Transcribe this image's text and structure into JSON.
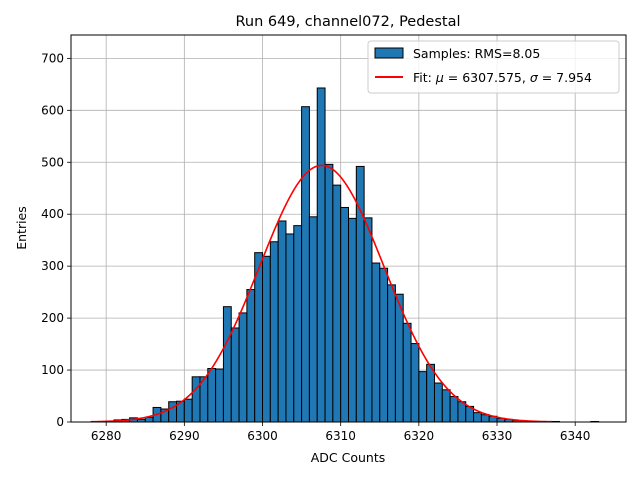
{
  "chart_data": {
    "type": "bar",
    "title": "Run 649, channel072, Pedestal",
    "xlabel": "ADC Counts",
    "ylabel": "Entries",
    "xlim": [
      6275.5,
      6346.5
    ],
    "ylim": [
      0,
      745
    ],
    "xticks": [
      6280,
      6290,
      6300,
      6310,
      6320,
      6330,
      6340
    ],
    "yticks": [
      0,
      100,
      200,
      300,
      400,
      500,
      600,
      700
    ],
    "grid": true,
    "legend_position": "top-right",
    "bar_color": "#1f77b4",
    "fit_color": "#ff0000",
    "legend": [
      {
        "kind": "patch",
        "color": "#1f77b4",
        "label": "Samples: RMS=8.05"
      },
      {
        "kind": "line",
        "color": "#ff0000",
        "label_prefix": "Fit: ",
        "mu_symbol": "μ",
        "mu_text": " = 6307.575, ",
        "sigma_symbol": "σ",
        "sigma_text": " = 7.954"
      }
    ],
    "histogram": {
      "bin_width": 1,
      "bins": [
        {
          "x": 6279,
          "y": 1
        },
        {
          "x": 6280,
          "y": 2
        },
        {
          "x": 6281,
          "y": 4
        },
        {
          "x": 6282,
          "y": 5
        },
        {
          "x": 6283,
          "y": 8
        },
        {
          "x": 6284,
          "y": 5
        },
        {
          "x": 6285,
          "y": 9
        },
        {
          "x": 6286,
          "y": 28
        },
        {
          "x": 6287,
          "y": 25
        },
        {
          "x": 6288,
          "y": 39
        },
        {
          "x": 6289,
          "y": 40
        },
        {
          "x": 6290,
          "y": 44
        },
        {
          "x": 6291,
          "y": 87
        },
        {
          "x": 6292,
          "y": 87
        },
        {
          "x": 6293,
          "y": 103
        },
        {
          "x": 6294,
          "y": 102
        },
        {
          "x": 6295,
          "y": 222
        },
        {
          "x": 6296,
          "y": 181
        },
        {
          "x": 6297,
          "y": 210
        },
        {
          "x": 6298,
          "y": 255
        },
        {
          "x": 6299,
          "y": 326
        },
        {
          "x": 6300,
          "y": 319
        },
        {
          "x": 6301,
          "y": 347
        },
        {
          "x": 6302,
          "y": 387
        },
        {
          "x": 6303,
          "y": 362
        },
        {
          "x": 6304,
          "y": 378
        },
        {
          "x": 6305,
          "y": 607
        },
        {
          "x": 6306,
          "y": 395
        },
        {
          "x": 6307,
          "y": 643
        },
        {
          "x": 6308,
          "y": 496
        },
        {
          "x": 6309,
          "y": 456
        },
        {
          "x": 6310,
          "y": 413
        },
        {
          "x": 6311,
          "y": 392
        },
        {
          "x": 6312,
          "y": 492
        },
        {
          "x": 6313,
          "y": 393
        },
        {
          "x": 6314,
          "y": 306
        },
        {
          "x": 6315,
          "y": 296
        },
        {
          "x": 6316,
          "y": 264
        },
        {
          "x": 6317,
          "y": 246
        },
        {
          "x": 6318,
          "y": 190
        },
        {
          "x": 6319,
          "y": 151
        },
        {
          "x": 6320,
          "y": 97
        },
        {
          "x": 6321,
          "y": 111
        },
        {
          "x": 6322,
          "y": 75
        },
        {
          "x": 6323,
          "y": 62
        },
        {
          "x": 6324,
          "y": 49
        },
        {
          "x": 6325,
          "y": 39
        },
        {
          "x": 6326,
          "y": 30
        },
        {
          "x": 6327,
          "y": 18
        },
        {
          "x": 6328,
          "y": 14
        },
        {
          "x": 6329,
          "y": 11
        },
        {
          "x": 6330,
          "y": 7
        },
        {
          "x": 6331,
          "y": 5
        },
        {
          "x": 6332,
          "y": 3
        },
        {
          "x": 6333,
          "y": 2
        },
        {
          "x": 6334,
          "y": 1
        },
        {
          "x": 6335,
          "y": 1
        },
        {
          "x": 6336,
          "y": 1
        },
        {
          "x": 6337,
          "y": 1
        },
        {
          "x": 6342,
          "y": 1
        }
      ]
    },
    "fit": {
      "model": "gaussian",
      "mu": 6307.575,
      "sigma": 7.954,
      "amplitude": 494,
      "x_range": [
        6278,
        6337
      ]
    }
  }
}
